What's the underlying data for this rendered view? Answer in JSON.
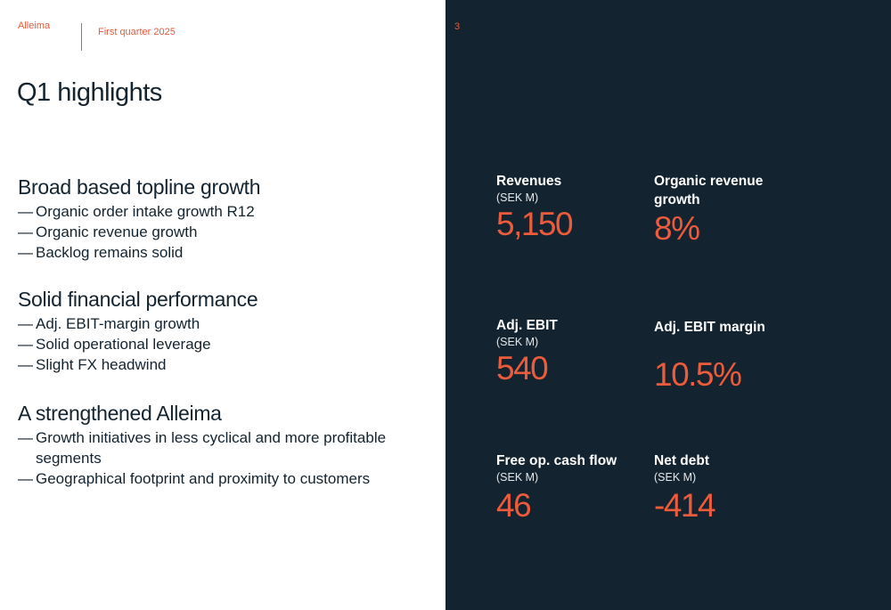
{
  "header": {
    "brand": "Alleima",
    "period": "First quarter 2025",
    "page_number": "3"
  },
  "title": "Q1 highlights",
  "sections": [
    {
      "heading": "Broad based topline growth",
      "items": [
        "Organic order intake growth R12",
        "Organic revenue growth",
        "Backlog remains solid"
      ]
    },
    {
      "heading": "Solid financial performance",
      "items": [
        "Adj. EBIT-margin growth",
        "Solid operational leverage",
        "Slight FX headwind"
      ]
    },
    {
      "heading": "A strengthened Alleima",
      "items": [
        "Growth initiatives in less cyclical and more profitable segments",
        "Geographical footprint and proximity to customers"
      ]
    }
  ],
  "bullet_dash": "—",
  "kpis": {
    "revenues": {
      "label": "Revenues",
      "unit": "(SEK M)",
      "value": "5,150"
    },
    "organic_growth": {
      "label": "Organic revenue growth",
      "value": "8%"
    },
    "adj_ebit": {
      "label": "Adj. EBIT",
      "unit": "(SEK M)",
      "value": "540"
    },
    "adj_ebit_margin": {
      "label": "Adj. EBIT margin",
      "value": "10.5%"
    },
    "free_cash_flow": {
      "label": "Free op. cash flow",
      "unit": "(SEK M)",
      "value": "46"
    },
    "net_debt": {
      "label": "Net debt",
      "unit": "(SEK M)",
      "value": "-414"
    }
  },
  "colors": {
    "accent": "#ec5b3c",
    "dark_panel": "#13232f"
  }
}
